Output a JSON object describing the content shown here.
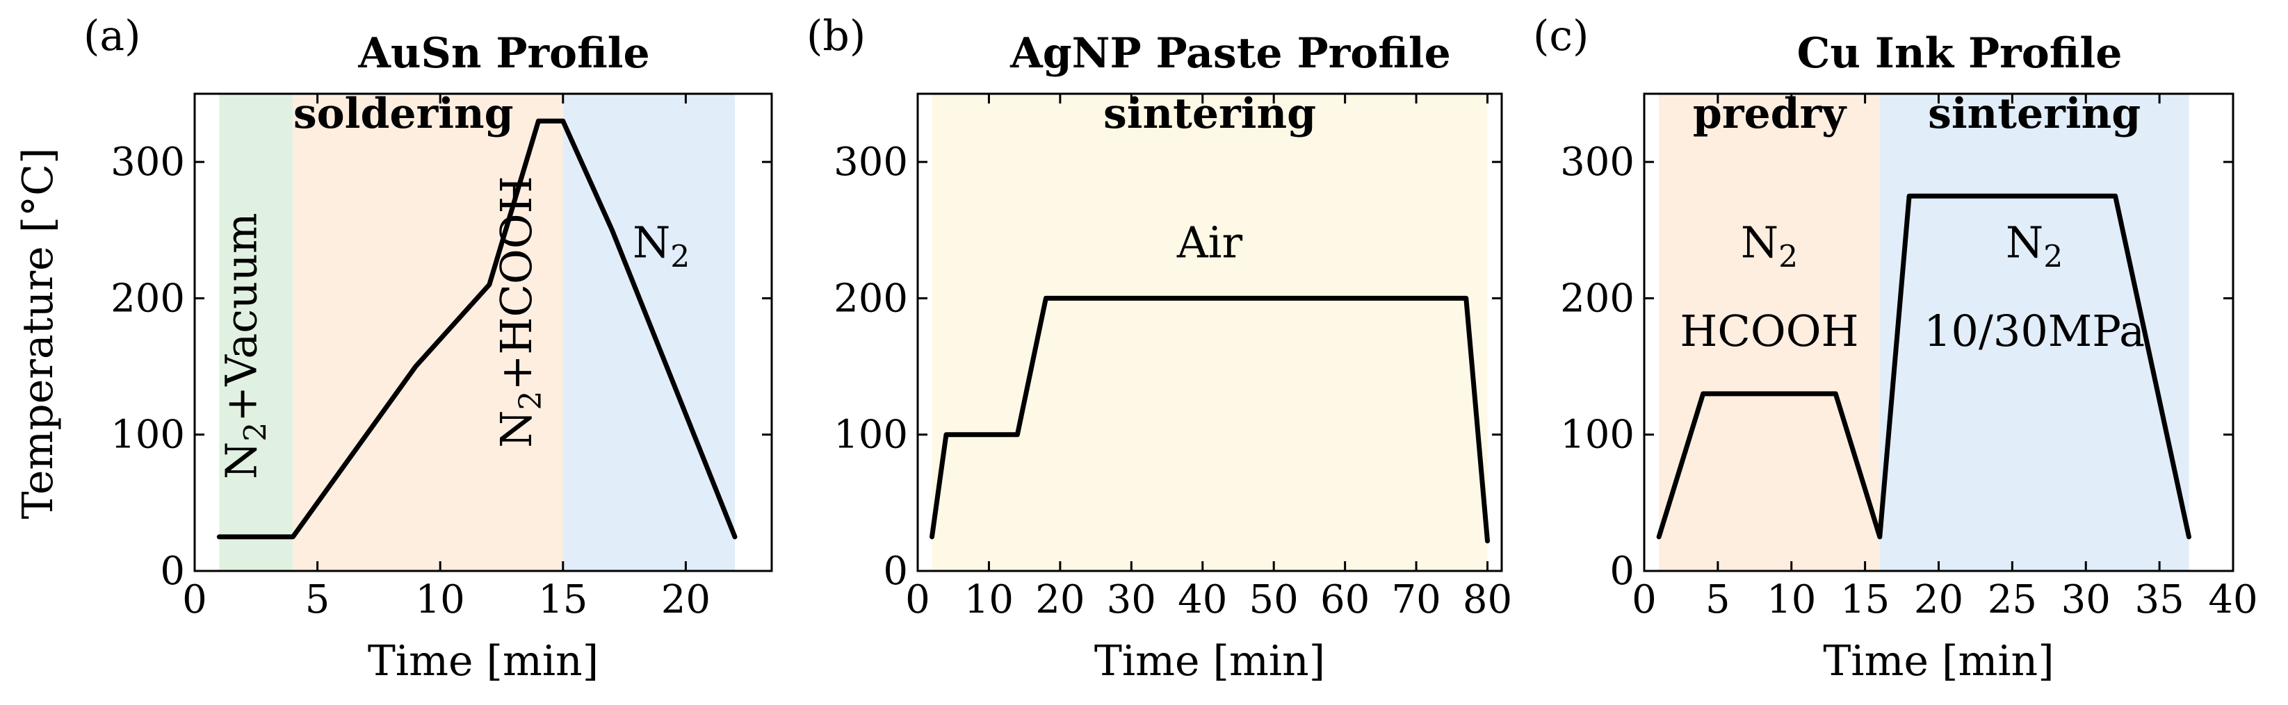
{
  "ylabel": "Temperature [°C]",
  "colors": {
    "green": "#e1f1e1",
    "orange": "#fdeee0",
    "blue": "#e1edf8",
    "yellow": "#fef8e6"
  },
  "chart_data": [
    {
      "type": "line",
      "letter": "(a)",
      "title": "AuSn Profile",
      "xlabel": "Time [min]",
      "xlim": [
        0,
        23.5
      ],
      "ylim": [
        0,
        350
      ],
      "xticks": [
        0,
        5,
        10,
        15,
        20
      ],
      "yticks": [
        0,
        100,
        200,
        300
      ],
      "x": [
        1,
        4,
        9,
        12,
        14,
        15,
        17,
        22
      ],
      "y": [
        25,
        25,
        150,
        210,
        330,
        330,
        250,
        25
      ],
      "regions": [
        {
          "x0": 1,
          "x1": 4,
          "color": "green"
        },
        {
          "x0": 4,
          "x1": 15,
          "color": "orange"
        },
        {
          "x0": 15,
          "x1": 22,
          "color": "blue"
        }
      ],
      "labels": [
        {
          "text": "soldering",
          "x": 8.5,
          "y": 325,
          "style": "region-label"
        },
        {
          "main": "N",
          "sub": "2",
          "rest": "+Vacuum",
          "x": 2.5,
          "y": 165,
          "rotate": true
        },
        {
          "main": "N",
          "sub": "2",
          "rest": "+HCOOH",
          "x": 13.7,
          "y": 190,
          "rotate": true
        },
        {
          "main": "N",
          "sub": "2",
          "rest": "",
          "x": 19,
          "y": 230
        }
      ]
    },
    {
      "type": "line",
      "letter": "(b)",
      "title": "AgNP Paste Profile",
      "xlabel": "Time [min]",
      "xlim": [
        0,
        82
      ],
      "ylim": [
        0,
        350
      ],
      "xticks": [
        0,
        10,
        20,
        30,
        40,
        50,
        60,
        70,
        80
      ],
      "yticks": [
        0,
        100,
        200,
        300
      ],
      "x": [
        2,
        4,
        14,
        18,
        77,
        80
      ],
      "y": [
        25,
        100,
        100,
        200,
        200,
        22
      ],
      "regions": [
        {
          "x0": 2,
          "x1": 80,
          "color": "yellow"
        }
      ],
      "labels": [
        {
          "text": "sintering",
          "x": 41,
          "y": 325,
          "style": "region-label"
        },
        {
          "text": "Air",
          "x": 41,
          "y": 230,
          "style": "anno"
        }
      ]
    },
    {
      "type": "line",
      "letter": "(c)",
      "title": "Cu Ink Profile",
      "xlabel": "Time [min]",
      "xlim": [
        0,
        40
      ],
      "ylim": [
        0,
        350
      ],
      "xticks": [
        0,
        5,
        10,
        15,
        20,
        25,
        30,
        35,
        40
      ],
      "yticks": [
        0,
        100,
        200,
        300
      ],
      "x": [
        1,
        4,
        13,
        16,
        18,
        32,
        37
      ],
      "y": [
        25,
        130,
        130,
        25,
        275,
        275,
        25
      ],
      "regions": [
        {
          "x0": 1,
          "x1": 16,
          "color": "orange"
        },
        {
          "x0": 16,
          "x1": 37,
          "color": "blue"
        }
      ],
      "labels": [
        {
          "text": "predry",
          "x": 8.5,
          "y": 325,
          "style": "region-label"
        },
        {
          "text": "sintering",
          "x": 26.5,
          "y": 325,
          "style": "region-label"
        },
        {
          "main": "N",
          "sub": "2",
          "rest": "",
          "x": 8.5,
          "y": 230
        },
        {
          "text": "HCOOH",
          "x": 8.5,
          "y": 165,
          "style": "anno"
        },
        {
          "main": "N",
          "sub": "2",
          "rest": "",
          "x": 26.5,
          "y": 230
        },
        {
          "text": "10/30MPa",
          "x": 26.5,
          "y": 165,
          "style": "anno"
        }
      ]
    }
  ]
}
